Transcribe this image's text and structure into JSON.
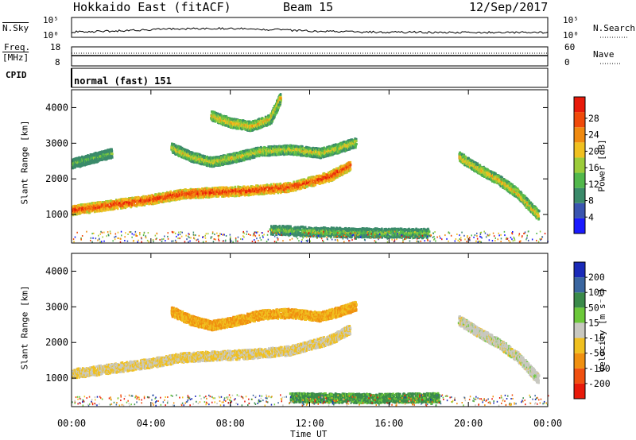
{
  "header": {
    "site": "Hokkaido East (fitACF)",
    "beam": "Beam 15",
    "date": "12/Sep/2017"
  },
  "noise_panel": {
    "left_label": "N.Sky",
    "right_label": "N.Search",
    "ticks_left": [
      "10^5",
      "10^0"
    ],
    "ticks_right": [
      "10^5",
      "10^0"
    ]
  },
  "freq_panel": {
    "left_label_1": "Freq.",
    "left_label_2": "[MHz]",
    "ticks_left": [
      "18",
      "8"
    ],
    "right_label": "Nave",
    "ticks_right": [
      "60",
      "0"
    ]
  },
  "cpid_panel": {
    "label": "CPID",
    "mode": "normal (fast) 151"
  },
  "chart_data": [
    {
      "type": "heatmap",
      "parameter": "Power",
      "ylabel": "Slant Range [km]",
      "colorbar_label": "Power [dB]",
      "x_ticks": [
        "00:00",
        "04:00",
        "08:00",
        "12:00",
        "16:00",
        "20:00",
        "00:00"
      ],
      "xlim_hours": [
        0,
        24
      ],
      "y_ticks": [
        1000,
        2000,
        3000,
        4000
      ],
      "ylim": [
        200,
        4500
      ],
      "colorbar_ticks": [
        4,
        8,
        12,
        16,
        20,
        24,
        28
      ],
      "colorbar_range": [
        0,
        30
      ],
      "colors": [
        "#1a1aff",
        "#3a55b0",
        "#3a8a6a",
        "#52b84c",
        "#9ccc3a",
        "#f0c020",
        "#f08a10",
        "#f04a0a",
        "#e81a0a"
      ],
      "echo_tracks": [
        {
          "t": [
            0,
            2,
            4,
            5.5,
            7,
            9,
            11,
            13,
            14
          ],
          "r": [
            1150,
            1300,
            1450,
            1600,
            1650,
            1700,
            1800,
            2100,
            2400
          ],
          "power": 28
        },
        {
          "t": [
            5,
            6,
            7,
            8,
            9.5,
            11,
            12.5,
            13.5,
            14.3
          ],
          "r": [
            2900,
            2650,
            2500,
            2600,
            2800,
            2850,
            2750,
            2900,
            3050
          ],
          "power": 18
        },
        {
          "t": [
            7,
            8,
            9,
            10,
            10.5
          ],
          "r": [
            3800,
            3600,
            3500,
            3700,
            4300
          ],
          "power": 20
        },
        {
          "t": [
            0,
            1,
            2
          ],
          "r": [
            2450,
            2600,
            2750
          ],
          "power": 12
        },
        {
          "t": [
            19.5,
            20.5,
            21.5,
            22.5,
            23.5
          ],
          "r": [
            2650,
            2300,
            2000,
            1600,
            1000
          ],
          "power": 20
        },
        {
          "t": [
            10,
            12,
            14,
            16,
            18
          ],
          "r": [
            600,
            550,
            520,
            510,
            500
          ],
          "power": 14
        }
      ]
    },
    {
      "type": "heatmap",
      "parameter": "Velocity",
      "ylabel": "Slant Range [km]",
      "xlabel": "Time UT",
      "colorbar_label": "Velocity [m s^-1]",
      "x_ticks": [
        "00:00",
        "04:00",
        "08:00",
        "12:00",
        "16:00",
        "20:00",
        "00:00"
      ],
      "xlim_hours": [
        0,
        24
      ],
      "y_ticks": [
        1000,
        2000,
        3000,
        4000
      ],
      "ylim": [
        200,
        4500
      ],
      "colorbar_ticks": [
        200,
        100,
        50,
        15,
        -15,
        -50,
        -100,
        -200
      ],
      "colors": [
        "#1a2ab8",
        "#3a66a0",
        "#3a8a4a",
        "#6cc83a",
        "#c8c8c0",
        "#f0c020",
        "#f09010",
        "#f05010",
        "#e81a0a"
      ],
      "echo_tracks": [
        {
          "t": [
            0,
            2,
            4,
            5.5,
            7,
            9,
            11,
            13,
            14
          ],
          "r": [
            1150,
            1300,
            1450,
            1600,
            1650,
            1700,
            1800,
            2100,
            2400
          ],
          "velocity": -15
        },
        {
          "t": [
            5,
            6,
            7,
            8,
            9.5,
            11,
            12.5,
            13.5,
            14.3
          ],
          "r": [
            2900,
            2650,
            2500,
            2600,
            2800,
            2850,
            2750,
            2900,
            3050
          ],
          "velocity": -50
        },
        {
          "t": [
            19.5,
            20.5,
            21.5,
            22.5,
            23.5
          ],
          "r": [
            2650,
            2300,
            2000,
            1600,
            1000
          ],
          "velocity": 0
        },
        {
          "t": [
            11,
            13,
            15,
            17,
            18.5
          ],
          "r": [
            480,
            470,
            460,
            470,
            480
          ],
          "velocity": 40
        }
      ]
    }
  ]
}
